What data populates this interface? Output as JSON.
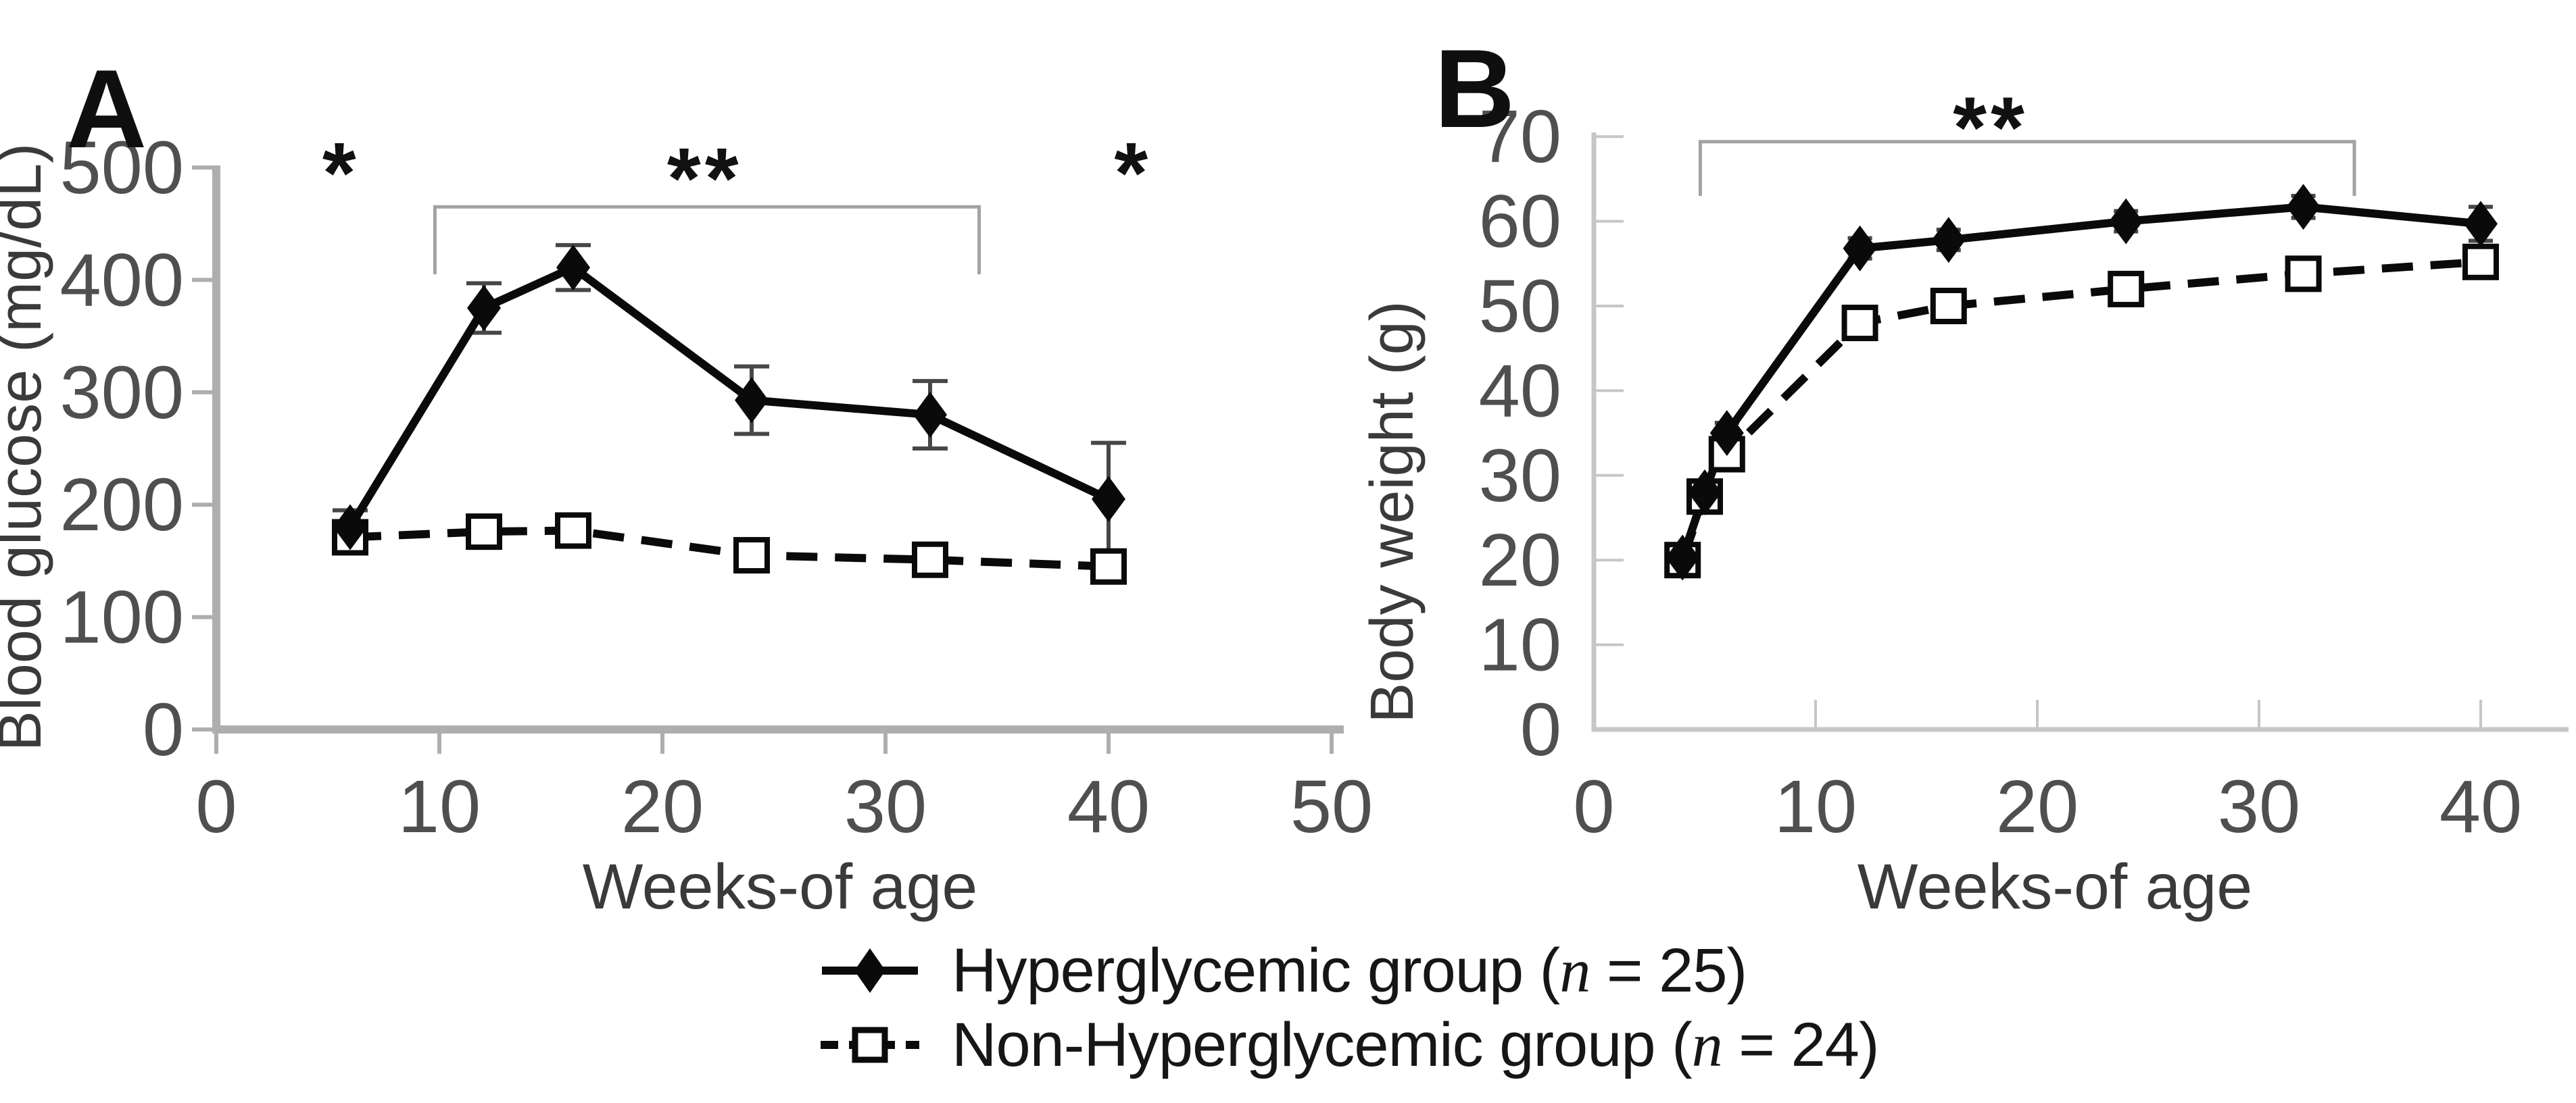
{
  "legend": {
    "items": [
      {
        "marker": "filled-diamond-solid-line",
        "label_prefix": "Hyperglycemic group (",
        "n_symbol": "n",
        "label_suffix": " = 25)"
      },
      {
        "marker": "open-square-dashed-line",
        "label_prefix": "Non-Hyperglycemic group (",
        "n_symbol": "n",
        "label_suffix": " = 24)"
      }
    ]
  },
  "chart_data": [
    {
      "id": "A",
      "panel_label": "A",
      "type": "line",
      "title": "",
      "xlabel": "Weeks-of age",
      "ylabel": "Blood glucose (mg/dL)",
      "xlim": [
        0,
        51
      ],
      "ylim": [
        0,
        500
      ],
      "xticks": [
        0,
        10,
        20,
        30,
        40,
        50
      ],
      "yticks": [
        0,
        100,
        200,
        300,
        400,
        500
      ],
      "grid": false,
      "x_weeks": [
        6,
        12,
        16,
        24,
        32,
        40
      ],
      "series": [
        {
          "name": "Hyperglycemic group (n = 25)",
          "marker": "filled-diamond",
          "line": "solid",
          "values": [
            180,
            375,
            411,
            293,
            280,
            205
          ],
          "errors": [
            15,
            22,
            20,
            30,
            30,
            50
          ]
        },
        {
          "name": "Non-Hyperglycemic group (n = 24)",
          "marker": "open-square",
          "line": "dashed",
          "values": [
            171,
            176,
            177,
            155,
            151,
            145
          ],
          "errors": [
            9,
            9,
            8,
            8,
            8,
            8
          ]
        }
      ],
      "significance": {
        "bracket": {
          "from_week": 9.8,
          "to_week": 34.2,
          "value": 465,
          "tick_to_value": 405
        },
        "stars": [
          {
            "text": "*",
            "week": 5.6,
            "value": 505
          },
          {
            "text": "**",
            "week": 21.9,
            "value": 500
          },
          {
            "text": "*",
            "week": 41.1,
            "value": 505
          }
        ]
      }
    },
    {
      "id": "B",
      "panel_label": "B",
      "type": "line",
      "title": "",
      "xlabel": "Weeks-of age",
      "ylabel": "Body weight (g)",
      "xlim": [
        0,
        44
      ],
      "ylim": [
        0,
        70
      ],
      "xticks": [
        0,
        10,
        20,
        30,
        40
      ],
      "yticks": [
        0,
        10,
        20,
        30,
        40,
        50,
        60,
        70
      ],
      "grid": false,
      "x_weeks": [
        4,
        5,
        6,
        12,
        16,
        24,
        32,
        40
      ],
      "series": [
        {
          "name": "Hyperglycemic group (n = 25)",
          "marker": "filled-diamond",
          "line": "solid",
          "values": [
            20.3,
            28,
            35,
            56.8,
            57.8,
            60,
            61.7,
            59.7
          ],
          "errors": [
            1,
            1,
            1.2,
            1.2,
            1.2,
            1.2,
            1.3,
            2
          ]
        },
        {
          "name": "Non-Hyperglycemic group (n = 24)",
          "marker": "open-square",
          "line": "dashed",
          "values": [
            20,
            27.5,
            32.5,
            48,
            50,
            52,
            53.8,
            55.2
          ],
          "errors": [
            0.8,
            0.8,
            1,
            1,
            1,
            1,
            1,
            1.2
          ]
        }
      ],
      "significance": {
        "bracket": {
          "from_week": 4.8,
          "to_week": 34.3,
          "value": 69.4,
          "tick_to_value": 63
        },
        "stars": [
          {
            "text": "**",
            "week": 17.9,
            "value": 72.4
          }
        ]
      }
    }
  ],
  "colors": {
    "series": "#0a0a0a",
    "axis_a": "#aeaeae",
    "axis_b": "#c6c6c6",
    "bracket": "#a2a2a2",
    "tick_label": "#4f4f4f",
    "axis_title": "#3a3a3a",
    "error_bar": "#474747",
    "star": "#111111",
    "panel_letter": "#0f0f0f"
  }
}
